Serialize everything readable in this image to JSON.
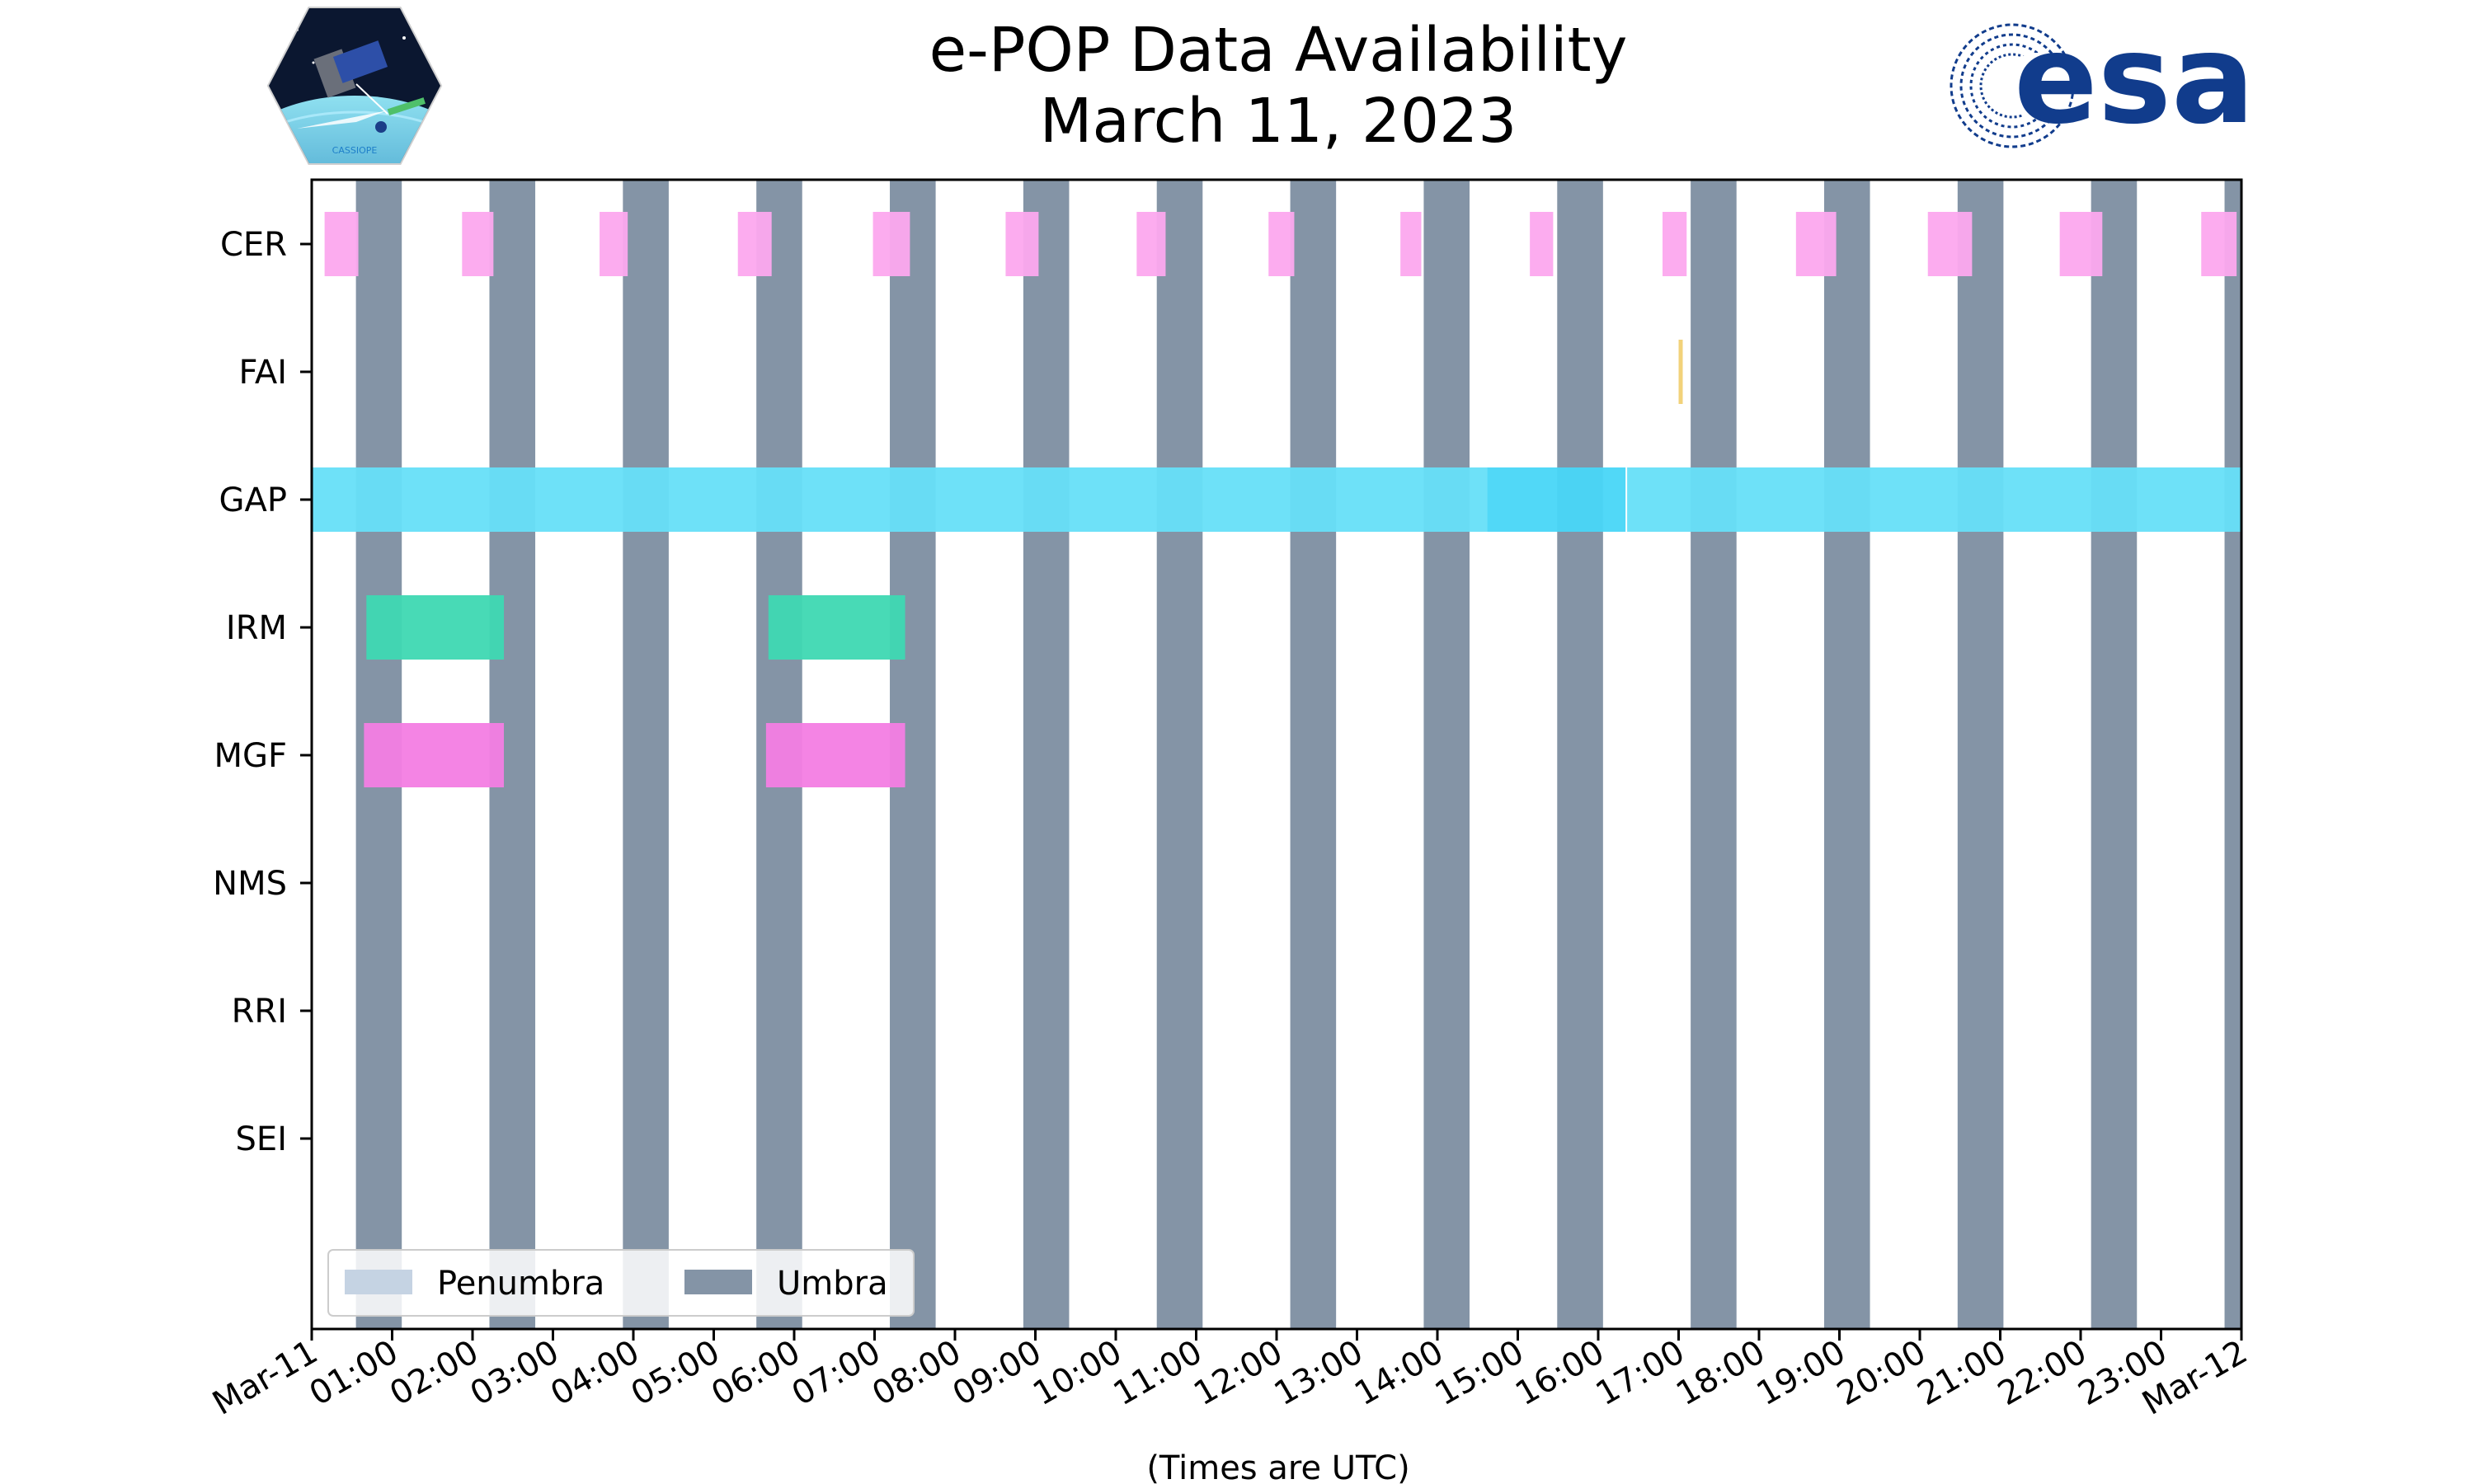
{
  "chart_data": {
    "type": "timeline",
    "title": [
      "e-POP Data Availability",
      "March 11, 2023"
    ],
    "xlabel": "(Times are UTC)",
    "x_unit": "hours since 2023-03-11 00:00 UTC",
    "xlim": [
      0,
      24
    ],
    "x_ticks": [
      {
        "v": 0,
        "label": "Mar-11"
      },
      {
        "v": 1,
        "label": "01:00"
      },
      {
        "v": 2,
        "label": "02:00"
      },
      {
        "v": 3,
        "label": "03:00"
      },
      {
        "v": 4,
        "label": "04:00"
      },
      {
        "v": 5,
        "label": "05:00"
      },
      {
        "v": 6,
        "label": "06:00"
      },
      {
        "v": 7,
        "label": "07:00"
      },
      {
        "v": 8,
        "label": "08:00"
      },
      {
        "v": 9,
        "label": "09:00"
      },
      {
        "v": 10,
        "label": "10:00"
      },
      {
        "v": 11,
        "label": "11:00"
      },
      {
        "v": 12,
        "label": "12:00"
      },
      {
        "v": 13,
        "label": "13:00"
      },
      {
        "v": 14,
        "label": "14:00"
      },
      {
        "v": 15,
        "label": "15:00"
      },
      {
        "v": 16,
        "label": "16:00"
      },
      {
        "v": 17,
        "label": "17:00"
      },
      {
        "v": 18,
        "label": "18:00"
      },
      {
        "v": 19,
        "label": "19:00"
      },
      {
        "v": 20,
        "label": "20:00"
      },
      {
        "v": 21,
        "label": "21:00"
      },
      {
        "v": 22,
        "label": "22:00"
      },
      {
        "v": 23,
        "label": "23:00"
      },
      {
        "v": 24,
        "label": "Mar-12"
      }
    ],
    "instruments": [
      "CER",
      "FAI",
      "GAP",
      "IRM",
      "MGF",
      "NMS",
      "RRI",
      "SEI"
    ],
    "colors": {
      "CER": "#fca8ee",
      "FAI": "#f2d27a",
      "GAP": "#66dff8",
      "GAP_dense": "#48d6f7",
      "IRM": "#3ed8b2",
      "MGF": "#f37de3",
      "umbra": "#8494a6",
      "penumbra": "#c5d3e3",
      "axis": "#000000"
    },
    "umbra": [
      [
        0.55,
        1.12
      ],
      [
        2.21,
        2.78
      ],
      [
        3.87,
        4.44
      ],
      [
        5.53,
        6.1
      ],
      [
        7.19,
        7.76
      ],
      [
        8.85,
        9.42
      ],
      [
        10.51,
        11.08
      ],
      [
        12.17,
        12.74
      ],
      [
        13.83,
        14.4
      ],
      [
        15.49,
        16.06
      ],
      [
        17.15,
        17.72
      ],
      [
        18.81,
        19.38
      ],
      [
        20.47,
        21.04
      ],
      [
        22.13,
        22.7
      ],
      [
        23.79,
        24.0
      ]
    ],
    "penumbra": [],
    "series": [
      {
        "name": "CER",
        "intervals": [
          [
            0.16,
            0.58
          ],
          [
            1.87,
            2.26
          ],
          [
            3.58,
            3.93
          ],
          [
            5.3,
            5.72
          ],
          [
            6.98,
            7.44
          ],
          [
            8.63,
            9.04
          ],
          [
            10.26,
            10.62
          ],
          [
            11.9,
            12.22
          ],
          [
            13.54,
            13.8
          ],
          [
            15.15,
            15.44
          ],
          [
            16.8,
            17.1
          ],
          [
            18.46,
            18.96
          ],
          [
            20.1,
            20.65
          ],
          [
            21.74,
            22.27
          ],
          [
            23.5,
            23.94
          ]
        ]
      },
      {
        "name": "FAI",
        "intervals": [
          [
            17.0,
            17.04
          ]
        ]
      },
      {
        "name": "GAP",
        "intervals": [
          [
            0.0,
            14.62
          ],
          [
            14.62,
            16.34
          ],
          [
            16.36,
            24.0
          ]
        ],
        "dense": [
          1
        ]
      },
      {
        "name": "IRM",
        "intervals": [
          [
            0.68,
            2.39
          ],
          [
            5.68,
            7.38
          ]
        ]
      },
      {
        "name": "MGF",
        "intervals": [
          [
            0.65,
            2.39
          ],
          [
            5.65,
            7.38
          ]
        ]
      },
      {
        "name": "NMS",
        "intervals": []
      },
      {
        "name": "RRI",
        "intervals": []
      },
      {
        "name": "SEI",
        "intervals": []
      }
    ],
    "legend": {
      "placement": "lower-left",
      "entries": [
        {
          "label": "Penumbra",
          "color_key": "penumbra"
        },
        {
          "label": "Umbra",
          "color_key": "umbra"
        }
      ]
    }
  },
  "logos": {
    "cassiope_text": "CASSIOPE",
    "esa_text": "esa"
  }
}
